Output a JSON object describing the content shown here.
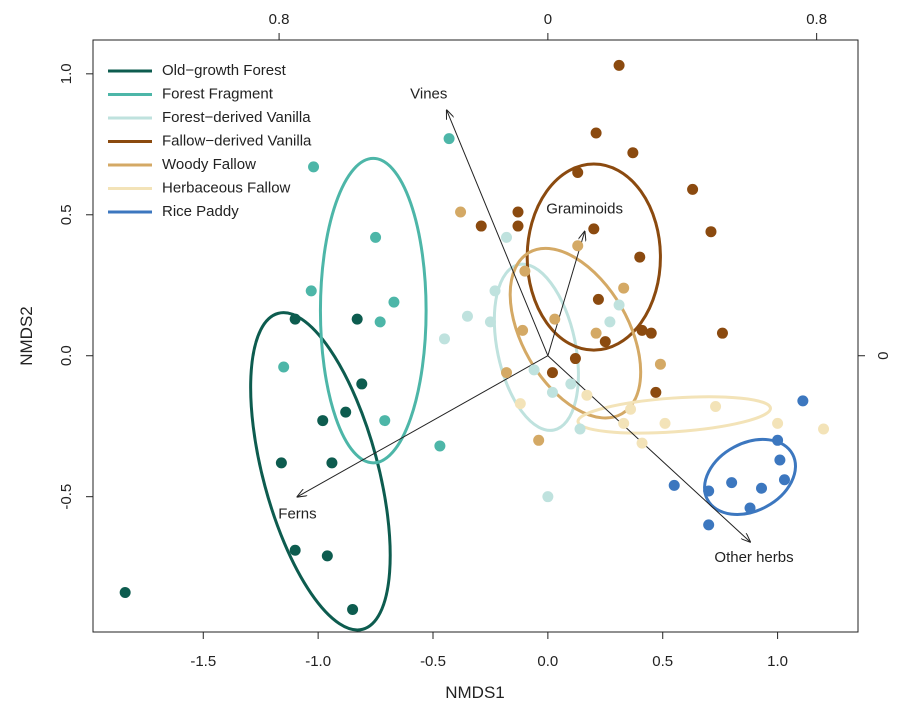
{
  "chart_data": {
    "type": "scatter",
    "xlabel": "NMDS1",
    "ylabel": "NMDS2",
    "xlim": [
      -1.98,
      1.35
    ],
    "ylim": [
      -0.98,
      1.12
    ],
    "x_ticks": [
      "-1.5",
      "-1.0",
      "-0.5",
      "0.0",
      "0.5",
      "1.0"
    ],
    "x_tick_values": [
      -1.5,
      -1.0,
      -0.5,
      0.0,
      0.5,
      1.0
    ],
    "y_ticks": [
      "-0.5",
      "0.0",
      "0.5",
      "1.0"
    ],
    "y_tick_values": [
      -0.5,
      0.0,
      0.5,
      1.0
    ],
    "top_ticks": [
      "0.8",
      "0",
      "0.8"
    ],
    "top_tick_values": [
      -1.17,
      0.0,
      1.17
    ],
    "right_ticks": [
      "0"
    ],
    "right_tick_values": [
      0.0
    ],
    "grid": false,
    "legend_position": "top-left",
    "series": [
      {
        "name": "Old−growth Forest",
        "color": "#0d5c4f",
        "points": [
          [
            -1.1,
            0.13
          ],
          [
            -0.83,
            0.13
          ],
          [
            -0.81,
            -0.1
          ],
          [
            -0.88,
            -0.2
          ],
          [
            -0.98,
            -0.23
          ],
          [
            -1.16,
            -0.38
          ],
          [
            -0.94,
            -0.38
          ],
          [
            -1.1,
            -0.69
          ],
          [
            -0.96,
            -0.71
          ],
          [
            -1.84,
            -0.84
          ],
          [
            -0.85,
            -0.9
          ]
        ],
        "ellipse": {
          "center": [
            -0.99,
            -0.41
          ],
          "semi_axes": [
            0.25,
            0.58
          ],
          "angle_deg": -15
        }
      },
      {
        "name": "Forest Fragment",
        "color": "#4db6a8",
        "points": [
          [
            -1.02,
            0.67
          ],
          [
            -0.75,
            0.42
          ],
          [
            -1.03,
            0.23
          ],
          [
            -0.67,
            0.19
          ],
          [
            -0.73,
            0.12
          ],
          [
            -1.15,
            -0.04
          ],
          [
            -0.71,
            -0.23
          ],
          [
            -0.47,
            -0.32
          ],
          [
            -0.43,
            0.77
          ]
        ],
        "ellipse": {
          "center": [
            -0.76,
            0.16
          ],
          "semi_axes": [
            0.23,
            0.54
          ],
          "angle_deg": 0
        }
      },
      {
        "name": "Forest−derived Vanilla",
        "color": "#bfe2de",
        "points": [
          [
            -0.18,
            0.42
          ],
          [
            -0.23,
            0.23
          ],
          [
            -0.25,
            0.12
          ],
          [
            -0.35,
            0.14
          ],
          [
            -0.45,
            0.06
          ],
          [
            0.27,
            0.12
          ],
          [
            0.31,
            0.18
          ],
          [
            0.1,
            -0.1
          ],
          [
            0.02,
            -0.13
          ],
          [
            0.14,
            -0.26
          ],
          [
            0.0,
            -0.5
          ],
          [
            -0.06,
            -0.05
          ]
        ],
        "ellipse": {
          "center": [
            -0.05,
            0.03
          ],
          "semi_axes": [
            0.17,
            0.3
          ],
          "angle_deg": -12
        }
      },
      {
        "name": "Fallow−derived Vanilla",
        "color": "#8b4a0f",
        "points": [
          [
            0.31,
            1.03
          ],
          [
            0.21,
            0.79
          ],
          [
            0.37,
            0.72
          ],
          [
            0.13,
            0.65
          ],
          [
            0.63,
            0.59
          ],
          [
            -0.13,
            0.51
          ],
          [
            -0.13,
            0.46
          ],
          [
            -0.29,
            0.46
          ],
          [
            0.71,
            0.44
          ],
          [
            0.2,
            0.45
          ],
          [
            0.4,
            0.35
          ],
          [
            0.22,
            0.2
          ],
          [
            0.25,
            0.05
          ],
          [
            0.41,
            0.09
          ],
          [
            0.45,
            0.08
          ],
          [
            0.76,
            0.08
          ],
          [
            0.12,
            -0.01
          ],
          [
            0.02,
            -0.06
          ],
          [
            0.47,
            -0.13
          ]
        ],
        "ellipse": {
          "center": [
            0.2,
            0.35
          ],
          "semi_axes": [
            0.29,
            0.33
          ],
          "angle_deg": 0
        }
      },
      {
        "name": "Woody Fallow",
        "color": "#d4a965",
        "points": [
          [
            -0.38,
            0.51
          ],
          [
            0.13,
            0.39
          ],
          [
            -0.1,
            0.3
          ],
          [
            0.33,
            0.24
          ],
          [
            0.03,
            0.13
          ],
          [
            0.21,
            0.08
          ],
          [
            -0.11,
            0.09
          ],
          [
            -0.18,
            -0.06
          ],
          [
            -0.04,
            -0.3
          ],
          [
            0.49,
            -0.03
          ]
        ],
        "ellipse": {
          "center": [
            0.12,
            0.08
          ],
          "semi_axes": [
            0.23,
            0.33
          ],
          "angle_deg": -30
        }
      },
      {
        "name": "Herbaceous Fallow",
        "color": "#f3e3b8",
        "points": [
          [
            0.17,
            -0.14
          ],
          [
            0.36,
            -0.19
          ],
          [
            0.73,
            -0.18
          ],
          [
            0.33,
            -0.24
          ],
          [
            0.51,
            -0.24
          ],
          [
            0.41,
            -0.31
          ],
          [
            1.2,
            -0.26
          ],
          [
            1.0,
            -0.24
          ],
          [
            -0.12,
            -0.17
          ]
        ],
        "ellipse": {
          "center": [
            0.55,
            -0.21
          ],
          "semi_axes": [
            0.42,
            0.06
          ],
          "angle_deg": -4
        }
      },
      {
        "name": "Rice Paddy",
        "color": "#3c77bf",
        "points": [
          [
            1.11,
            -0.16
          ],
          [
            1.0,
            -0.3
          ],
          [
            1.01,
            -0.37
          ],
          [
            0.93,
            -0.47
          ],
          [
            1.03,
            -0.44
          ],
          [
            0.8,
            -0.45
          ],
          [
            0.55,
            -0.46
          ],
          [
            0.7,
            -0.48
          ],
          [
            0.88,
            -0.54
          ],
          [
            0.7,
            -0.6
          ]
        ],
        "ellipse": {
          "center": [
            0.88,
            -0.43
          ],
          "semi_axes": [
            0.21,
            0.12
          ],
          "angle_deg": -28
        }
      }
    ],
    "vectors": [
      {
        "label": "Vines",
        "x": -0.44,
        "y": 0.87
      },
      {
        "label": "Graminoids",
        "x": 0.16,
        "y": 0.44
      },
      {
        "label": "Ferns",
        "x": -1.09,
        "y": -0.5
      },
      {
        "label": "Other herbs",
        "x": 0.88,
        "y": -0.66
      }
    ]
  }
}
